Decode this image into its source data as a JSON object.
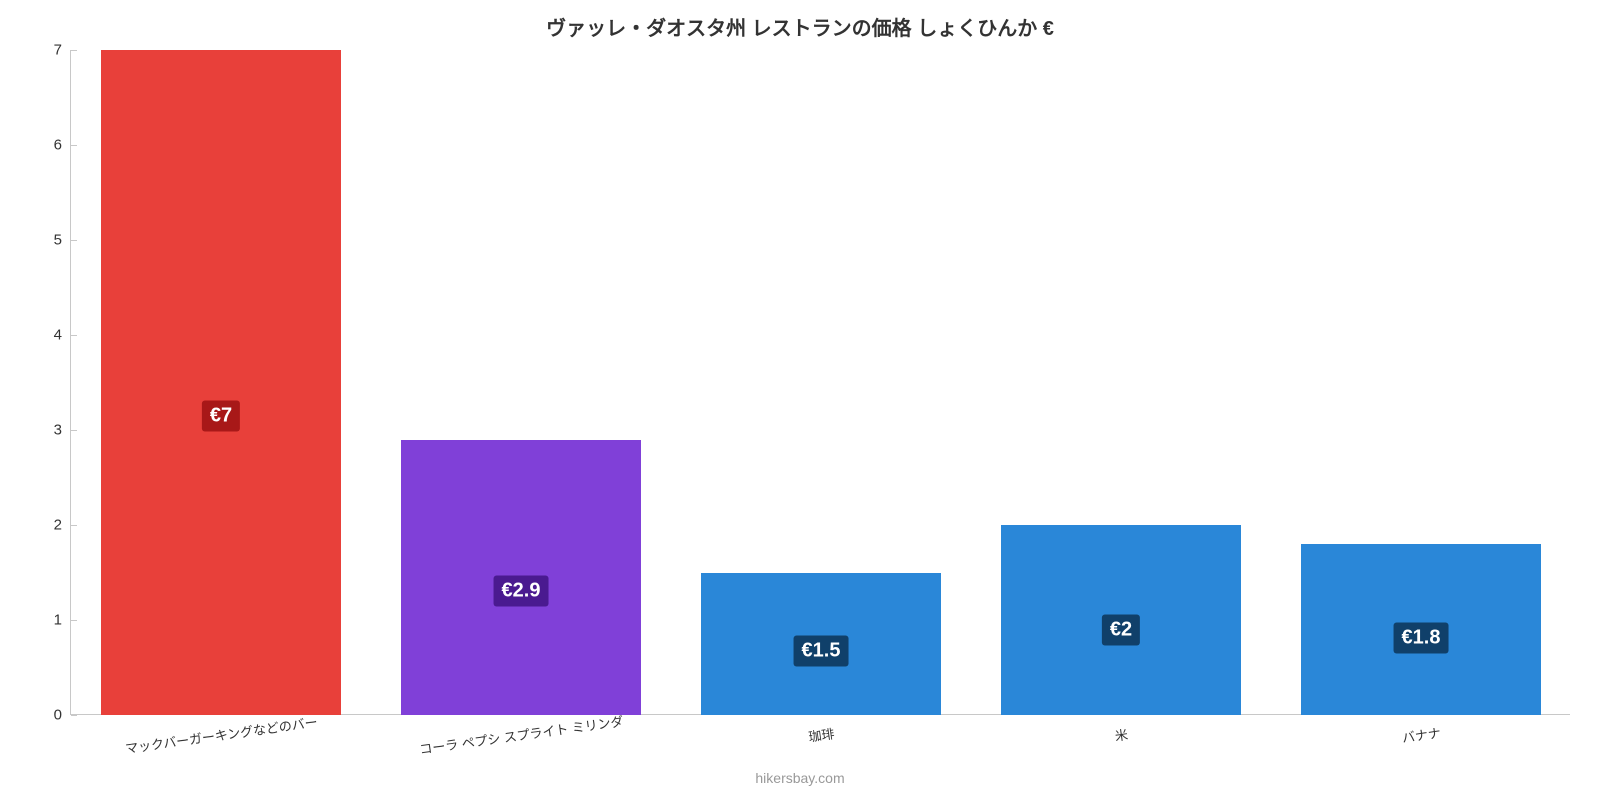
{
  "chart": {
    "type": "bar",
    "title": "ヴァッレ・ダオスタ州 レストランの価格 しょくひんか €",
    "title_fontsize": 20,
    "title_color": "#333333",
    "background_color": "#ffffff",
    "axis_color": "#c8c8c8",
    "y": {
      "min": 0,
      "max": 7,
      "ticks": [
        0,
        1,
        2,
        3,
        4,
        5,
        6,
        7
      ],
      "label_fontsize": 15,
      "label_color": "#333333"
    },
    "x": {
      "labels": [
        "マックバーガーキングなどのバー",
        "コーラ ペプシ スプライト ミリンダ",
        "珈琲",
        "米",
        "バナナ"
      ],
      "label_fontsize": 13,
      "label_color": "#333333",
      "label_rotate_deg": -8
    },
    "bars": {
      "width_fraction": 0.8,
      "colors": [
        "#e8403a",
        "#8040d8",
        "#2a87d8",
        "#2a87d8",
        "#2a87d8"
      ],
      "values": [
        7,
        2.9,
        1.5,
        2,
        1.8
      ],
      "value_labels": [
        "€7",
        "€2.9",
        "€1.5",
        "€2",
        "€1.8"
      ],
      "value_label_bg_colors": [
        "#a81818",
        "#4a1a90",
        "#10406a",
        "#10406a",
        "#10406a"
      ],
      "value_label_fontsize": 20,
      "value_label_color": "#ffffff",
      "value_label_y_fraction": 0.55
    },
    "attribution": {
      "text": "hikersbay.com",
      "color": "#999999",
      "fontsize": 14
    }
  }
}
